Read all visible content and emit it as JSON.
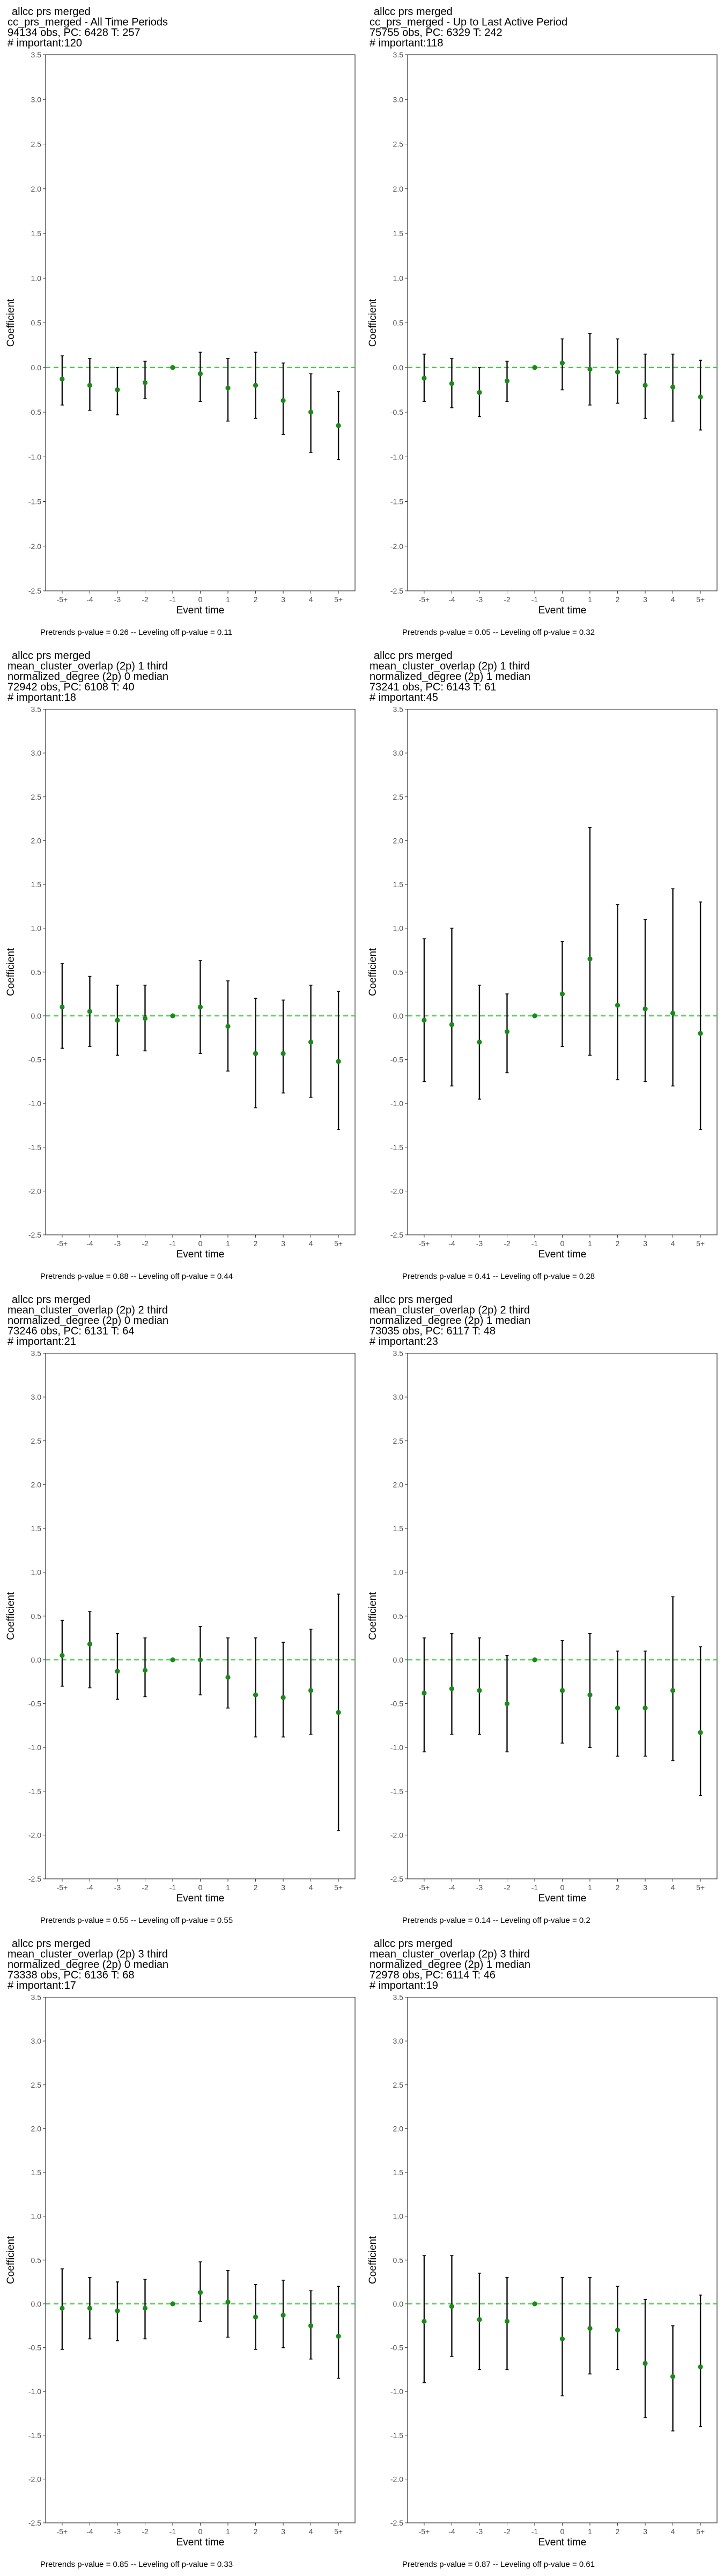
{
  "layout": {
    "columns": 2,
    "rows": 4
  },
  "chart_data": [
    {
      "type": "scatter",
      "title_lines": [
        "allcc prs merged",
        "cc_prs_merged - All Time Periods",
        "94134 obs, PC: 6428 T: 257",
        "# important:120"
      ],
      "xlabel": "Event time",
      "ylabel": "Coefficient",
      "ylim": [
        -2.5,
        3.5
      ],
      "yticks": [
        -2.5,
        -2.0,
        -1.5,
        -1.0,
        -0.5,
        0.0,
        0.5,
        1.0,
        1.5,
        2.0,
        2.5,
        3.0,
        3.5
      ],
      "categories": [
        "-5+",
        "-4",
        "-3",
        "-2",
        "-1",
        "0",
        "1",
        "2",
        "3",
        "4",
        "5+"
      ],
      "grid": false,
      "legend": "none",
      "reference_line": 0,
      "estimates": [
        -0.13,
        -0.2,
        -0.25,
        -0.17,
        0.0,
        -0.07,
        -0.23,
        -0.2,
        -0.37,
        -0.5,
        -0.65
      ],
      "ci_low": [
        -0.42,
        -0.48,
        -0.53,
        -0.35,
        0.0,
        -0.38,
        -0.6,
        -0.57,
        -0.75,
        -0.95,
        -1.03
      ],
      "ci_high": [
        0.13,
        0.1,
        0.0,
        0.07,
        0.0,
        0.17,
        0.1,
        0.17,
        0.05,
        -0.07,
        -0.27
      ],
      "footnote": "Pretrends p-value = 0.26 -- Leveling off p-value = 0.11"
    },
    {
      "type": "scatter",
      "title_lines": [
        "allcc prs merged",
        "cc_prs_merged - Up to Last Active Period",
        "75755 obs, PC: 6329 T: 242",
        "# important:118"
      ],
      "xlabel": "Event time",
      "ylabel": "Coefficient",
      "ylim": [
        -2.5,
        3.5
      ],
      "yticks": [
        -2.5,
        -2.0,
        -1.5,
        -1.0,
        -0.5,
        0.0,
        0.5,
        1.0,
        1.5,
        2.0,
        2.5,
        3.0,
        3.5
      ],
      "categories": [
        "-5+",
        "-4",
        "-3",
        "-2",
        "-1",
        "0",
        "1",
        "2",
        "3",
        "4",
        "5+"
      ],
      "grid": false,
      "legend": "none",
      "reference_line": 0,
      "estimates": [
        -0.12,
        -0.18,
        -0.28,
        -0.15,
        0.0,
        0.05,
        -0.02,
        -0.05,
        -0.2,
        -0.22,
        -0.33
      ],
      "ci_low": [
        -0.38,
        -0.45,
        -0.55,
        -0.38,
        0.0,
        -0.25,
        -0.42,
        -0.4,
        -0.57,
        -0.6,
        -0.7
      ],
      "ci_high": [
        0.15,
        0.1,
        0.0,
        0.07,
        0.0,
        0.32,
        0.38,
        0.32,
        0.15,
        0.15,
        0.08
      ],
      "footnote": "Pretrends p-value = 0.05 -- Leveling off p-value = 0.32"
    },
    {
      "type": "scatter",
      "title_lines": [
        "allcc prs merged",
        "mean_cluster_overlap (2p) 1 third",
        "normalized_degree (2p) 0 median",
        "72942 obs, PC: 6108 T: 40",
        "# important:18"
      ],
      "xlabel": "Event time",
      "ylabel": "Coefficient",
      "ylim": [
        -2.5,
        3.5
      ],
      "yticks": [
        -2.5,
        -2.0,
        -1.5,
        -1.0,
        -0.5,
        0.0,
        0.5,
        1.0,
        1.5,
        2.0,
        2.5,
        3.0,
        3.5
      ],
      "categories": [
        "-5+",
        "-4",
        "-3",
        "-2",
        "-1",
        "0",
        "1",
        "2",
        "3",
        "4",
        "5+"
      ],
      "grid": false,
      "legend": "none",
      "reference_line": 0,
      "estimates": [
        0.1,
        0.05,
        -0.05,
        -0.03,
        0.0,
        0.1,
        -0.12,
        -0.43,
        -0.43,
        -0.3,
        -0.52
      ],
      "ci_low": [
        -0.37,
        -0.35,
        -0.45,
        -0.4,
        0.0,
        -0.43,
        -0.63,
        -1.05,
        -0.88,
        -0.93,
        -1.3
      ],
      "ci_high": [
        0.6,
        0.45,
        0.35,
        0.35,
        0.0,
        0.63,
        0.4,
        0.2,
        0.18,
        0.35,
        0.28
      ],
      "footnote": "Pretrends p-value = 0.88 -- Leveling off p-value = 0.44"
    },
    {
      "type": "scatter",
      "title_lines": [
        "allcc prs merged",
        "mean_cluster_overlap (2p) 1 third",
        "normalized_degree (2p) 1 median",
        "73241 obs, PC: 6143 T: 61",
        "# important:45"
      ],
      "xlabel": "Event time",
      "ylabel": "Coefficient",
      "ylim": [
        -2.5,
        3.5
      ],
      "yticks": [
        -2.5,
        -2.0,
        -1.5,
        -1.0,
        -0.5,
        0.0,
        0.5,
        1.0,
        1.5,
        2.0,
        2.5,
        3.0,
        3.5
      ],
      "categories": [
        "-5+",
        "-4",
        "-3",
        "-2",
        "-1",
        "0",
        "1",
        "2",
        "3",
        "4",
        "5+"
      ],
      "grid": false,
      "legend": "none",
      "reference_line": 0,
      "estimates": [
        -0.05,
        -0.1,
        -0.3,
        -0.18,
        0.0,
        0.25,
        0.65,
        0.12,
        0.08,
        0.03,
        -0.2
      ],
      "ci_low": [
        -0.75,
        -0.8,
        -0.95,
        -0.65,
        0.0,
        -0.35,
        -0.45,
        -0.73,
        -0.75,
        -0.8,
        -1.3
      ],
      "ci_high": [
        0.88,
        1.0,
        0.35,
        0.25,
        0.0,
        0.85,
        2.15,
        1.27,
        1.1,
        1.45,
        1.3
      ],
      "footnote": "Pretrends p-value = 0.41 -- Leveling off p-value = 0.28"
    },
    {
      "type": "scatter",
      "title_lines": [
        "allcc prs merged",
        "mean_cluster_overlap (2p) 2 third",
        "normalized_degree (2p) 0 median",
        "73246 obs, PC: 6131 T: 64",
        "# important:21"
      ],
      "xlabel": "Event time",
      "ylabel": "Coefficient",
      "ylim": [
        -2.5,
        3.5
      ],
      "yticks": [
        -2.5,
        -2.0,
        -1.5,
        -1.0,
        -0.5,
        0.0,
        0.5,
        1.0,
        1.5,
        2.0,
        2.5,
        3.0,
        3.5
      ],
      "categories": [
        "-5+",
        "-4",
        "-3",
        "-2",
        "-1",
        "0",
        "1",
        "2",
        "3",
        "4",
        "5+"
      ],
      "grid": false,
      "legend": "none",
      "reference_line": 0,
      "estimates": [
        0.05,
        0.18,
        -0.13,
        -0.12,
        0.0,
        0.0,
        -0.2,
        -0.4,
        -0.43,
        -0.35,
        -0.6
      ],
      "ci_low": [
        -0.3,
        -0.32,
        -0.45,
        -0.42,
        0.0,
        -0.4,
        -0.55,
        -0.88,
        -0.88,
        -0.85,
        -1.95
      ],
      "ci_high": [
        0.45,
        0.55,
        0.3,
        0.25,
        0.0,
        0.38,
        0.25,
        0.25,
        0.2,
        0.35,
        0.75
      ],
      "footnote": "Pretrends p-value = 0.55 -- Leveling off p-value = 0.55"
    },
    {
      "type": "scatter",
      "title_lines": [
        "allcc prs merged",
        "mean_cluster_overlap (2p) 2 third",
        "normalized_degree (2p) 1 median",
        "73035 obs, PC: 6117 T: 48",
        "# important:23"
      ],
      "xlabel": "Event time",
      "ylabel": "Coefficient",
      "ylim": [
        -2.5,
        3.5
      ],
      "yticks": [
        -2.5,
        -2.0,
        -1.5,
        -1.0,
        -0.5,
        0.0,
        0.5,
        1.0,
        1.5,
        2.0,
        2.5,
        3.0,
        3.5
      ],
      "categories": [
        "-5+",
        "-4",
        "-3",
        "-2",
        "-1",
        "0",
        "1",
        "2",
        "3",
        "4",
        "5+"
      ],
      "grid": false,
      "legend": "none",
      "reference_line": 0,
      "estimates": [
        -0.38,
        -0.33,
        -0.35,
        -0.5,
        0.0,
        -0.35,
        -0.4,
        -0.55,
        -0.55,
        -0.35,
        -0.83
      ],
      "ci_low": [
        -1.05,
        -0.85,
        -0.85,
        -1.05,
        0.0,
        -0.95,
        -1.0,
        -1.1,
        -1.1,
        -1.15,
        -1.55
      ],
      "ci_high": [
        0.25,
        0.3,
        0.25,
        0.05,
        0.0,
        0.22,
        0.3,
        0.1,
        0.1,
        0.72,
        0.15
      ],
      "footnote": "Pretrends p-value = 0.14 -- Leveling off p-value = 0.2"
    },
    {
      "type": "scatter",
      "title_lines": [
        "allcc prs merged",
        "mean_cluster_overlap (2p) 3 third",
        "normalized_degree (2p) 0 median",
        "73338 obs, PC: 6136 T: 68",
        "# important:17"
      ],
      "xlabel": "Event time",
      "ylabel": "Coefficient",
      "ylim": [
        -2.5,
        3.5
      ],
      "yticks": [
        -2.5,
        -2.0,
        -1.5,
        -1.0,
        -0.5,
        0.0,
        0.5,
        1.0,
        1.5,
        2.0,
        2.5,
        3.0,
        3.5
      ],
      "categories": [
        "-5+",
        "-4",
        "-3",
        "-2",
        "-1",
        "0",
        "1",
        "2",
        "3",
        "4",
        "5+"
      ],
      "grid": false,
      "legend": "none",
      "reference_line": 0,
      "estimates": [
        -0.05,
        -0.05,
        -0.08,
        -0.05,
        0.0,
        0.13,
        0.02,
        -0.15,
        -0.13,
        -0.25,
        -0.37
      ],
      "ci_low": [
        -0.52,
        -0.4,
        -0.42,
        -0.4,
        0.0,
        -0.2,
        -0.38,
        -0.52,
        -0.5,
        -0.63,
        -0.85
      ],
      "ci_high": [
        0.4,
        0.3,
        0.25,
        0.28,
        0.0,
        0.48,
        0.38,
        0.22,
        0.27,
        0.15,
        0.2
      ],
      "footnote": "Pretrends p-value = 0.85 -- Leveling off p-value = 0.33"
    },
    {
      "type": "scatter",
      "title_lines": [
        "allcc prs merged",
        "mean_cluster_overlap (2p) 3 third",
        "normalized_degree (2p) 1 median",
        "72978 obs, PC: 6114 T: 46",
        "# important:19"
      ],
      "xlabel": "Event time",
      "ylabel": "Coefficient",
      "ylim": [
        -2.5,
        3.5
      ],
      "yticks": [
        -2.5,
        -2.0,
        -1.5,
        -1.0,
        -0.5,
        0.0,
        0.5,
        1.0,
        1.5,
        2.0,
        2.5,
        3.0,
        3.5
      ],
      "categories": [
        "-5+",
        "-4",
        "-3",
        "-2",
        "-1",
        "0",
        "1",
        "2",
        "3",
        "4",
        "5+"
      ],
      "grid": false,
      "legend": "none",
      "reference_line": 0,
      "estimates": [
        -0.2,
        -0.03,
        -0.18,
        -0.2,
        0.0,
        -0.4,
        -0.28,
        -0.3,
        -0.68,
        -0.83,
        -0.72
      ],
      "ci_low": [
        -0.9,
        -0.6,
        -0.75,
        -0.75,
        0.0,
        -1.05,
        -0.8,
        -0.75,
        -1.3,
        -1.45,
        -1.4
      ],
      "ci_high": [
        0.55,
        0.55,
        0.35,
        0.3,
        0.0,
        0.3,
        0.3,
        0.2,
        0.05,
        -0.25,
        0.1
      ],
      "footnote": "Pretrends p-value = 0.87 -- Leveling off p-value = 0.61"
    }
  ],
  "colors": {
    "point": "#1a8a1a",
    "zero_line": "#33cc33",
    "errorbar": "#111111",
    "axis": "#333333"
  }
}
